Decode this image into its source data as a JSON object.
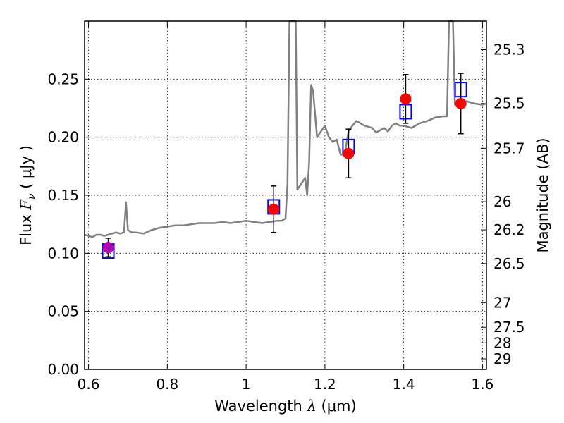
{
  "chart_data": {
    "type": "line",
    "xlabel": "Wavelength  λ (μm)",
    "ylabel": "Flux  F_ν  ( μJy )",
    "ylabel_parts": {
      "prefix": "Flux  ",
      "symbol": "F",
      "subscript": "ν",
      "suffix": "  ( μJy )"
    },
    "xlabel_parts": {
      "prefix": "Wavelength  ",
      "symbol": "λ",
      "suffix": " (μm)"
    },
    "y2label": "Magnitude (AB)",
    "xlim": [
      0.59,
      1.61
    ],
    "ylim": [
      0.0,
      0.3
    ],
    "grid": true,
    "x_ticks": [
      0.6,
      0.8,
      1.0,
      1.2,
      1.4,
      1.6
    ],
    "x_tick_labels": [
      "0.6",
      "0.8",
      "1",
      "1.2",
      "1.4",
      "1.6"
    ],
    "y_ticks": [
      0.0,
      0.05,
      0.1,
      0.15,
      0.2,
      0.25
    ],
    "y_tick_labels": [
      "0.00",
      "0.05",
      "0.10",
      "0.15",
      "0.20",
      "0.25"
    ],
    "y2_ticks": [
      {
        "label": "25.3",
        "flux": 0.2754
      },
      {
        "label": "25.5",
        "flux": 0.2291
      },
      {
        "label": "25.7",
        "flux": 0.1905
      },
      {
        "label": "26",
        "flux": 0.1445
      },
      {
        "label": "26.2",
        "flux": 0.1202
      },
      {
        "label": "26.5",
        "flux": 0.0912
      },
      {
        "label": "27",
        "flux": 0.0575
      },
      {
        "label": "27.5",
        "flux": 0.0363
      },
      {
        "label": "28",
        "flux": 0.0229
      },
      {
        "label": "29",
        "flux": 0.0091
      }
    ],
    "series": [
      {
        "kind": "spectrum",
        "color": "#808080",
        "x": [
          0.59,
          0.6,
          0.61,
          0.62,
          0.63,
          0.64,
          0.65,
          0.66,
          0.67,
          0.68,
          0.69,
          0.695,
          0.7,
          0.705,
          0.71,
          0.72,
          0.74,
          0.76,
          0.78,
          0.8,
          0.82,
          0.84,
          0.86,
          0.88,
          0.9,
          0.92,
          0.94,
          0.96,
          0.98,
          1.0,
          1.02,
          1.04,
          1.06,
          1.08,
          1.09,
          1.1,
          1.105,
          1.11,
          1.113,
          1.116,
          1.12,
          1.123,
          1.126,
          1.13,
          1.14,
          1.15,
          1.155,
          1.16,
          1.165,
          1.17,
          1.18,
          1.19,
          1.2,
          1.21,
          1.22,
          1.23,
          1.24,
          1.25,
          1.26,
          1.27,
          1.28,
          1.29,
          1.3,
          1.31,
          1.32,
          1.33,
          1.34,
          1.35,
          1.36,
          1.37,
          1.38,
          1.39,
          1.4,
          1.42,
          1.44,
          1.46,
          1.48,
          1.5,
          1.51,
          1.515,
          1.52,
          1.525,
          1.53,
          1.54,
          1.55,
          1.56,
          1.58,
          1.6,
          1.61
        ],
        "y": [
          0.116,
          0.115,
          0.114,
          0.116,
          0.116,
          0.115,
          0.116,
          0.117,
          0.118,
          0.117,
          0.118,
          0.144,
          0.12,
          0.119,
          0.118,
          0.118,
          0.117,
          0.12,
          0.122,
          0.123,
          0.124,
          0.124,
          0.125,
          0.126,
          0.126,
          0.126,
          0.127,
          0.126,
          0.127,
          0.128,
          0.127,
          0.126,
          0.127,
          0.128,
          0.128,
          0.13,
          0.16,
          0.3,
          0.3,
          0.3,
          0.3,
          0.3,
          0.3,
          0.155,
          0.16,
          0.165,
          0.15,
          0.178,
          0.245,
          0.24,
          0.2,
          0.205,
          0.21,
          0.2,
          0.196,
          0.198,
          0.185,
          0.185,
          0.205,
          0.21,
          0.214,
          0.212,
          0.21,
          0.209,
          0.208,
          0.204,
          0.206,
          0.208,
          0.205,
          0.21,
          0.212,
          0.21,
          0.21,
          0.208,
          0.212,
          0.214,
          0.217,
          0.218,
          0.218,
          0.3,
          0.3,
          0.3,
          0.228,
          0.229,
          0.23,
          0.231,
          0.229,
          0.228,
          0.229
        ]
      },
      {
        "kind": "model-boxes",
        "color": "#0000ff",
        "x": [
          0.65,
          1.07,
          1.26,
          1.405,
          1.545
        ],
        "y": [
          0.102,
          0.14,
          0.192,
          0.222,
          0.241
        ]
      },
      {
        "kind": "observed-points",
        "color": "#ff0000",
        "x": [
          1.07,
          1.26,
          1.405,
          1.545
        ],
        "y": [
          0.138,
          0.186,
          0.233,
          0.229
        ],
        "yerr": [
          0.02,
          0.021,
          0.021,
          0.026
        ]
      },
      {
        "kind": "observed-point-secondary",
        "color": "#b000b0",
        "x": [
          0.65
        ],
        "y": [
          0.105
        ],
        "yerr": [
          0.008
        ]
      }
    ]
  }
}
